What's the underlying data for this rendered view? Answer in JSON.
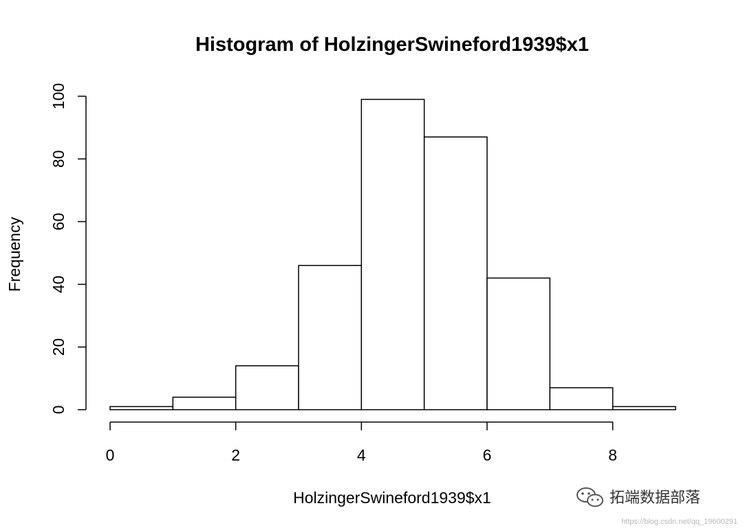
{
  "chart_data": {
    "type": "bar",
    "subtype": "histogram",
    "title": "Histogram of HolzingerSwineford1939$x1",
    "xlabel": "HolzingerSwineford1939$x1",
    "ylabel": "Frequency",
    "bins": [
      {
        "x0": 0,
        "x1": 1,
        "count": 1
      },
      {
        "x0": 1,
        "x1": 2,
        "count": 4
      },
      {
        "x0": 2,
        "x1": 3,
        "count": 14
      },
      {
        "x0": 3,
        "x1": 4,
        "count": 46
      },
      {
        "x0": 4,
        "x1": 5,
        "count": 99
      },
      {
        "x0": 5,
        "x1": 6,
        "count": 87
      },
      {
        "x0": 6,
        "x1": 7,
        "count": 42
      },
      {
        "x0": 7,
        "x1": 8,
        "count": 7
      },
      {
        "x0": 8,
        "x1": 9,
        "count": 1
      }
    ],
    "xlim": [
      0,
      9
    ],
    "ylim": [
      0,
      100
    ],
    "xticks": [
      0,
      2,
      4,
      6,
      8
    ],
    "yticks": [
      0,
      20,
      40,
      60,
      80,
      100
    ],
    "grid": false,
    "bar_fill": "#ffffff",
    "bar_stroke": "#000000"
  },
  "watermark": {
    "brand": "拓端数据部落",
    "url": "https://blog.csdn.net/qq_19600291",
    "icon": "wechat-icon"
  }
}
